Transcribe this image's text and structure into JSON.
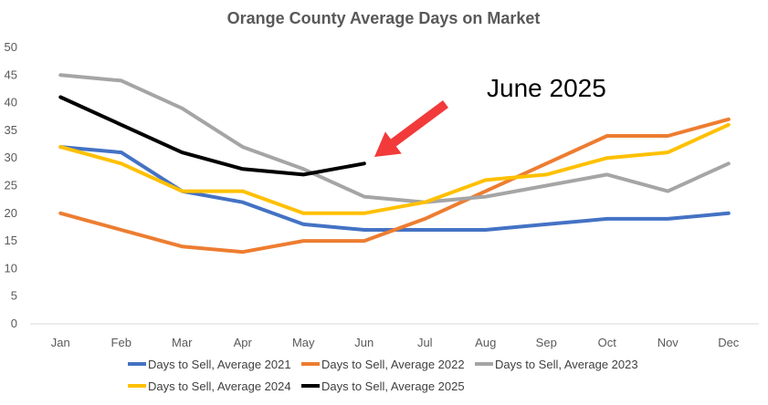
{
  "chart_data": {
    "type": "line",
    "title": "Orange County Average Days on Market",
    "xlabel": "",
    "ylabel": "",
    "ylim": [
      0,
      50
    ],
    "yticks": [
      0,
      5,
      10,
      15,
      20,
      25,
      30,
      35,
      40,
      45,
      50
    ],
    "grid": false,
    "legend": "bottom",
    "categories": [
      "Jan",
      "Feb",
      "Mar",
      "Apr",
      "May",
      "Jun",
      "Jul",
      "Aug",
      "Sep",
      "Oct",
      "Nov",
      "Dec"
    ],
    "series": [
      {
        "name": "Days to Sell, Average 2021",
        "color": "#4472C4",
        "values": [
          32,
          31,
          24,
          22,
          18,
          17,
          17,
          17,
          18,
          19,
          19,
          20
        ]
      },
      {
        "name": "Days to Sell, Average 2022",
        "color": "#ED7D31",
        "values": [
          20,
          17,
          14,
          13,
          15,
          15,
          19,
          24,
          29,
          34,
          34,
          37
        ]
      },
      {
        "name": "Days to Sell, Average 2023",
        "color": "#A5A5A5",
        "values": [
          45,
          44,
          39,
          32,
          28,
          23,
          22,
          23,
          25,
          27,
          24,
          29
        ]
      },
      {
        "name": "Days to Sell, Average 2024",
        "color": "#FFC000",
        "values": [
          32,
          29,
          24,
          24,
          20,
          20,
          22,
          26,
          27,
          30,
          31,
          36
        ]
      },
      {
        "name": "Days to Sell, Average 2025",
        "color": "#000000",
        "values": [
          41,
          36,
          31,
          28,
          27,
          29,
          null,
          null,
          null,
          null,
          null,
          null
        ]
      }
    ],
    "annotation": {
      "text": "June 2025",
      "arrow_color": "#F23A3A"
    }
  }
}
